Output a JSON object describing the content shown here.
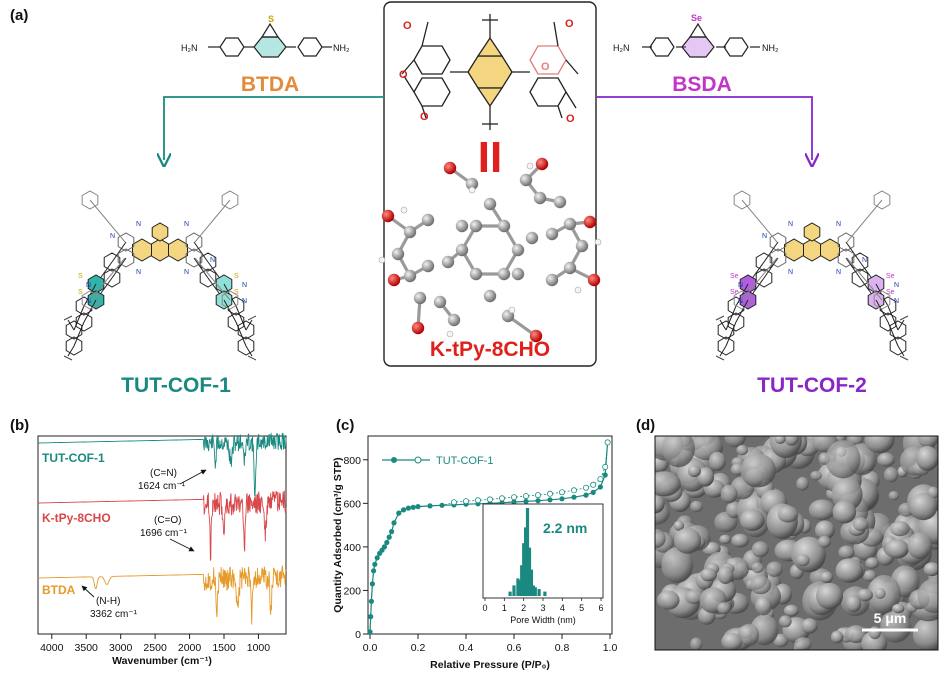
{
  "panel_labels": [
    "(a)",
    "(b)",
    "(c)",
    "(d)"
  ],
  "panel_a": {
    "left_linker": "BTDA",
    "right_linker": "BSDA",
    "center_monomer": "K-tPy-8CHO",
    "equals_sign": "II",
    "left_cof": "TUT-COF-1",
    "right_cof": "TUT-COF-2",
    "amine_label": "NH₂",
    "amine_label_left": "H₂N",
    "s_atom": "S",
    "se_atom": "Se",
    "n_atom": "N",
    "o_atom": "O",
    "colors": {
      "btda": "#e28b3b",
      "bsda": "#c335c8",
      "teal": "#1a8a80",
      "purple": "#8a26c8",
      "red": "#e0201c",
      "thio_ring": "#2fb6a9",
      "selena_ring": "#b35ee0",
      "pyrene": "#f4d580"
    }
  },
  "panel_b": {
    "series_labels": [
      "TUT-COF-1",
      "K-tPy-8CHO",
      "BTDA"
    ],
    "annotations": [
      {
        "bond": "(C=N)",
        "value": "1624 cm⁻¹"
      },
      {
        "bond": "(C=O)",
        "value": "1696 cm⁻¹"
      },
      {
        "bond": "(N-H)",
        "value": "3362 cm⁻¹"
      }
    ],
    "xlabel": "Wavenumber (cm⁻¹)",
    "xticks": [
      "4000",
      "3500",
      "3000",
      "2500",
      "2000",
      "1500",
      "1000"
    ],
    "series_colors": [
      "#1a8a80",
      "#d8474a",
      "#e69a2a"
    ]
  },
  "chart_data": {
    "type": "line",
    "title": "",
    "xlabel": "Relative Pressure (P/P₀)",
    "ylabel": "Quantity Adsorbed (cm³/g STP)",
    "xlim": [
      0,
      1.0
    ],
    "ylim": [
      0,
      900
    ],
    "xticks": [
      "0.0",
      "0.2",
      "0.4",
      "0.6",
      "0.8",
      "1.0"
    ],
    "yticks": [
      "0",
      "200",
      "400",
      "600",
      "800"
    ],
    "legend": "TUT-COF-1",
    "legend_position": "top-left",
    "series": [
      {
        "name": "TUT-COF-1",
        "x": [
          0.0,
          0.003,
          0.006,
          0.01,
          0.015,
          0.02,
          0.03,
          0.04,
          0.05,
          0.06,
          0.07,
          0.08,
          0.09,
          0.1,
          0.12,
          0.14,
          0.16,
          0.18,
          0.2,
          0.25,
          0.3,
          0.35,
          0.4,
          0.45,
          0.5,
          0.55,
          0.6,
          0.65,
          0.7,
          0.75,
          0.8,
          0.85,
          0.9,
          0.93,
          0.96,
          0.98,
          0.99
        ],
        "y": [
          10,
          80,
          150,
          230,
          290,
          320,
          350,
          370,
          385,
          400,
          420,
          445,
          470,
          510,
          555,
          570,
          578,
          582,
          585,
          588,
          591,
          593,
          596,
          598,
          600,
          603,
          606,
          609,
          612,
          616,
          621,
          628,
          638,
          650,
          675,
          730,
          880
        ]
      }
    ],
    "inset": {
      "type": "bar",
      "xlabel": "Pore Width (nm)",
      "xlim": [
        0,
        6
      ],
      "xticks": [
        "0",
        "1",
        "2",
        "3",
        "4",
        "5",
        "6"
      ],
      "annotation": "2.2 nm",
      "x": [
        1.3,
        1.5,
        1.7,
        1.8,
        1.9,
        2.0,
        2.1,
        2.2,
        2.3,
        2.4,
        2.5,
        2.6,
        2.8,
        3.1
      ],
      "values": [
        0.05,
        0.12,
        0.2,
        0.18,
        0.35,
        0.6,
        0.78,
        1.0,
        0.55,
        0.3,
        0.12,
        0.1,
        0.08,
        0.05
      ]
    }
  },
  "panel_d": {
    "scale_bar": "5 μm"
  }
}
